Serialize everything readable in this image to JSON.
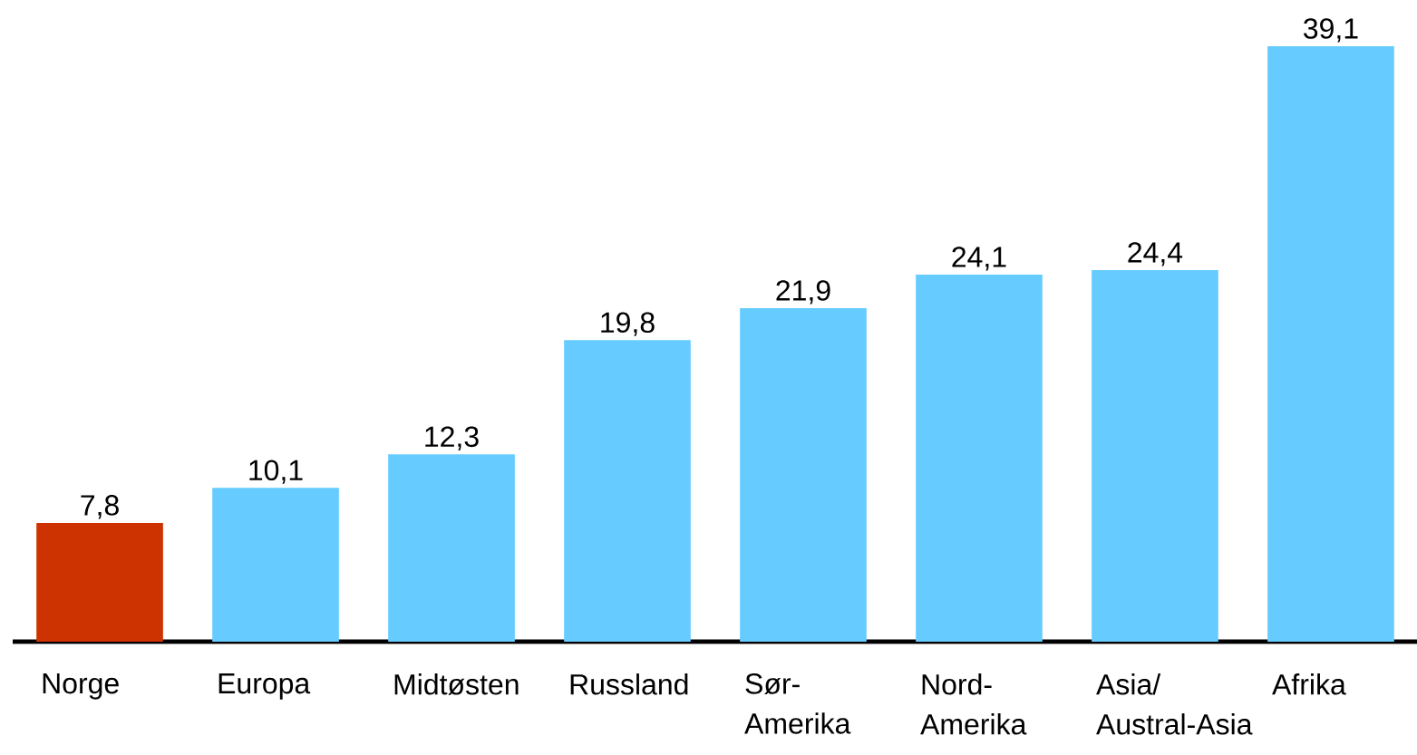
{
  "chart_data": {
    "type": "bar",
    "categories": [
      "Norge",
      "Europa",
      "Midtøsten",
      "Russland",
      "Sør-Amerika",
      "Nord-Amerika",
      "Asia/ Austral-Asia",
      "Afrika"
    ],
    "values": [
      7.8,
      10.1,
      12.3,
      19.8,
      21.9,
      24.1,
      24.4,
      39.1
    ],
    "value_labels": [
      "7,8",
      "10,1",
      "12,3",
      "19,8",
      "21,9",
      "24,1",
      "24,4",
      "39,1"
    ],
    "colors": [
      "#cc3300",
      "#66ccff",
      "#66ccff",
      "#66ccff",
      "#66ccff",
      "#66ccff",
      "#66ccff",
      "#66ccff"
    ]
  }
}
